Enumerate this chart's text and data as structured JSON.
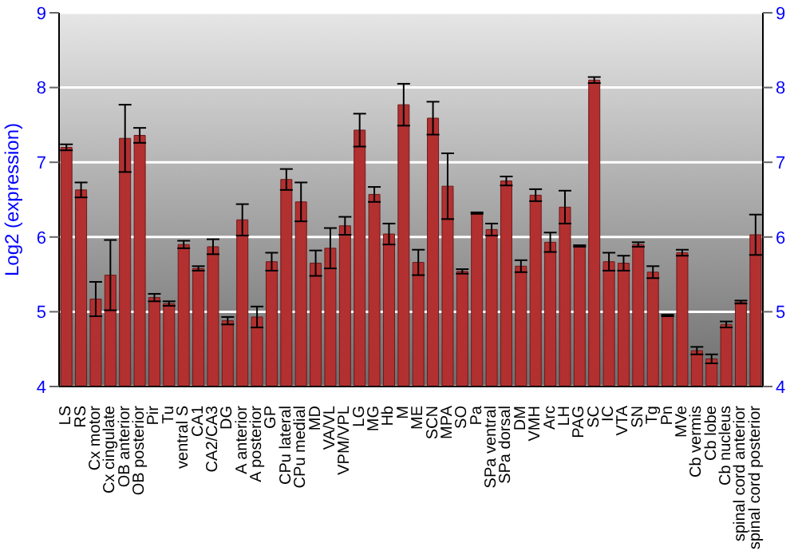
{
  "chart_data": {
    "type": "bar",
    "ylabel": "Log2 (expression)",
    "categories": [
      "LS",
      "RS",
      "Cx motor",
      "Cx cingulate",
      "OB anterior",
      "OB posterior",
      "Pir",
      "Tu",
      "ventral S",
      "CA1",
      "CA2/CA3",
      "DG",
      "A anterior",
      "A posterior",
      "GP",
      "CPu lateral",
      "CPu medial",
      "MD",
      "VA/VL",
      "VPM/VPL",
      "LG",
      "MG",
      "Hb",
      "M",
      "ME",
      "SCN",
      "MPA",
      "SO",
      "Pa",
      "SPa ventral",
      "SPa dorsal",
      "DM",
      "VMH",
      "Arc",
      "LH",
      "PAG",
      "SC",
      "IC",
      "VTA",
      "SN",
      "Tg",
      "Pn",
      "MVe",
      "Cb vermis",
      "Cb lobe",
      "Cb nucleus",
      "spinal cord anterior",
      "spinal cord posterior"
    ],
    "series": [
      {
        "color": "#b33030",
        "values": [
          7.2,
          6.63,
          5.17,
          5.49,
          7.32,
          7.36,
          5.19,
          5.11,
          5.9,
          5.58,
          5.87,
          4.88,
          6.23,
          4.93,
          5.67,
          6.77,
          6.47,
          5.65,
          5.85,
          6.15,
          7.43,
          6.57,
          6.04,
          7.77,
          5.66,
          7.59,
          6.68,
          5.54,
          6.32,
          6.1,
          6.75,
          5.61,
          6.56,
          5.93,
          6.4,
          5.88,
          8.1,
          5.67,
          5.65,
          5.9,
          5.53,
          4.95,
          5.79,
          4.48,
          4.37,
          4.83,
          5.13,
          6.03
        ],
        "errors": [
          0.04,
          0.1,
          0.23,
          0.47,
          0.45,
          0.1,
          0.05,
          0.03,
          0.05,
          0.03,
          0.1,
          0.05,
          0.21,
          0.14,
          0.12,
          0.14,
          0.26,
          0.17,
          0.27,
          0.12,
          0.22,
          0.1,
          0.14,
          0.28,
          0.17,
          0.22,
          0.44,
          0.03,
          0.01,
          0.08,
          0.06,
          0.08,
          0.08,
          0.13,
          0.22,
          0.01,
          0.04,
          0.12,
          0.1,
          0.03,
          0.08,
          0.01,
          0.04,
          0.05,
          0.06,
          0.04,
          0.02,
          0.27
        ]
      }
    ],
    "ylim": [
      4,
      9
    ],
    "yticks": [
      4,
      5,
      6,
      7,
      8,
      9
    ],
    "y2lim": [
      4,
      9
    ],
    "y2ticks": [
      4,
      5,
      6,
      7,
      8,
      9
    ],
    "grid": "y"
  }
}
